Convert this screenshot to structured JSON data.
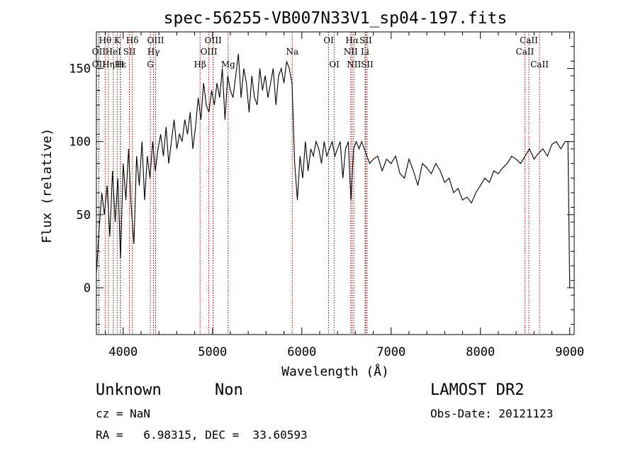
{
  "chart_data": {
    "type": "line",
    "title": "spec-56255-VB007N33V1_sp04-197.fits",
    "xlabel": "Wavelength (Å)",
    "ylabel": "Flux (relative)",
    "xlim": [
      3700,
      9050
    ],
    "ylim": [
      -32,
      175
    ],
    "xticks": [
      4000,
      5000,
      6000,
      7000,
      8000,
      9000
    ],
    "yticks": [
      0,
      50,
      100,
      150
    ],
    "grid": false,
    "series": [
      {
        "color": "#000000",
        "x": [
          3700,
          3730,
          3760,
          3790,
          3820,
          3850,
          3880,
          3910,
          3940,
          3970,
          4000,
          4030,
          4060,
          4090,
          4120,
          4150,
          4180,
          4210,
          4240,
          4270,
          4300,
          4330,
          4360,
          4390,
          4420,
          4450,
          4480,
          4510,
          4540,
          4570,
          4600,
          4630,
          4660,
          4690,
          4720,
          4750,
          4780,
          4810,
          4840,
          4870,
          4900,
          4930,
          4960,
          4990,
          5020,
          5050,
          5080,
          5110,
          5140,
          5170,
          5200,
          5230,
          5260,
          5290,
          5320,
          5350,
          5380,
          5410,
          5440,
          5470,
          5500,
          5530,
          5560,
          5590,
          5620,
          5650,
          5680,
          5710,
          5740,
          5770,
          5800,
          5830,
          5860,
          5890,
          5920,
          5950,
          5980,
          6010,
          6040,
          6070,
          6100,
          6130,
          6160,
          6190,
          6220,
          6250,
          6280,
          6310,
          6340,
          6370,
          6400,
          6430,
          6460,
          6490,
          6520,
          6550,
          6580,
          6610,
          6640,
          6670,
          6700,
          6730,
          6760,
          6800,
          6850,
          6900,
          6950,
          7000,
          7050,
          7100,
          7150,
          7200,
          7250,
          7300,
          7350,
          7400,
          7450,
          7500,
          7550,
          7600,
          7650,
          7700,
          7750,
          7800,
          7850,
          7900,
          7950,
          8000,
          8050,
          8100,
          8150,
          8200,
          8250,
          8300,
          8350,
          8400,
          8450,
          8500,
          8550,
          8600,
          8650,
          8700,
          8750,
          8800,
          8850,
          8900,
          8950,
          8980,
          9000
        ],
        "y": [
          10,
          40,
          65,
          50,
          70,
          35,
          80,
          45,
          75,
          20,
          85,
          60,
          95,
          55,
          30,
          90,
          70,
          100,
          60,
          90,
          75,
          100,
          80,
          95,
          105,
          90,
          110,
          85,
          100,
          115,
          95,
          105,
          100,
          115,
          105,
          120,
          95,
          110,
          130,
          115,
          140,
          125,
          120,
          135,
          125,
          140,
          130,
          150,
          115,
          145,
          135,
          130,
          145,
          160,
          130,
          150,
          140,
          120,
          145,
          130,
          125,
          150,
          135,
          145,
          130,
          140,
          150,
          125,
          145,
          150,
          140,
          155,
          150,
          140,
          85,
          60,
          90,
          75,
          100,
          80,
          95,
          90,
          100,
          95,
          85,
          100,
          90,
          95,
          100,
          90,
          95,
          100,
          75,
          95,
          100,
          60,
          95,
          100,
          95,
          100,
          95,
          90,
          85,
          88,
          90,
          80,
          88,
          85,
          90,
          78,
          75,
          88,
          80,
          70,
          85,
          82,
          78,
          85,
          80,
          72,
          75,
          65,
          68,
          60,
          62,
          58,
          65,
          70,
          75,
          72,
          80,
          78,
          82,
          85,
          90,
          88,
          85,
          90,
          95,
          88,
          92,
          95,
          90,
          98,
          100,
          95,
          100,
          100,
          0
        ]
      }
    ],
    "spectral_lines": [
      {
        "label": "Hθ",
        "x": 3798,
        "row": 0
      },
      {
        "label": "K",
        "x": 3933,
        "row": 0
      },
      {
        "label": "Hδ",
        "x": 4102,
        "row": 0
      },
      {
        "label": "OII",
        "x": 3727,
        "row": 1
      },
      {
        "label": "HeI",
        "x": 3889,
        "row": 1
      },
      {
        "label": "SII",
        "x": 4070,
        "row": 1
      },
      {
        "label": "OIII",
        "x": 4363,
        "row": 0
      },
      {
        "label": "Hγ",
        "x": 4340,
        "row": 1
      },
      {
        "label": "G",
        "x": 4304,
        "row": 2
      },
      {
        "label": "OII",
        "x": 3727,
        "row": 2
      },
      {
        "label": "Hε",
        "x": 3970,
        "row": 2
      },
      {
        "label": "Hη",
        "x": 3835,
        "row": 2
      },
      {
        "label": "H",
        "x": 3968,
        "row": 2
      },
      {
        "label": "OIII",
        "x": 5007,
        "row": 0
      },
      {
        "label": "OIII",
        "x": 4959,
        "row": 1
      },
      {
        "label": "Hβ",
        "x": 4861,
        "row": 2
      },
      {
        "label": "Mg",
        "x": 5175,
        "row": 2
      },
      {
        "label": "Na",
        "x": 5893,
        "row": 1
      },
      {
        "label": "OI",
        "x": 6300,
        "row": 0
      },
      {
        "label": "OI",
        "x": 6364,
        "row": 2
      },
      {
        "label": "Hα",
        "x": 6563,
        "row": 0
      },
      {
        "label": "SII",
        "x": 6716,
        "row": 0
      },
      {
        "label": "NII",
        "x": 6548,
        "row": 1
      },
      {
        "label": "Li",
        "x": 6708,
        "row": 1
      },
      {
        "label": "NII",
        "x": 6583,
        "row": 2
      },
      {
        "label": "SII",
        "x": 6731,
        "row": 2
      },
      {
        "label": "CaII",
        "x": 8542,
        "row": 0
      },
      {
        "label": "CaII",
        "x": 8498,
        "row": 1
      },
      {
        "label": "CaII",
        "x": 8662,
        "row": 2
      }
    ],
    "line_color": "#8b0000"
  },
  "info": {
    "class": "Unknown",
    "subclass": "Non",
    "survey": "LAMOST DR2",
    "cz": "cz = NaN",
    "obs_date": "Obs-Date: 20121123",
    "coords": "RA =   6.98315, DEC =  33.60593"
  }
}
